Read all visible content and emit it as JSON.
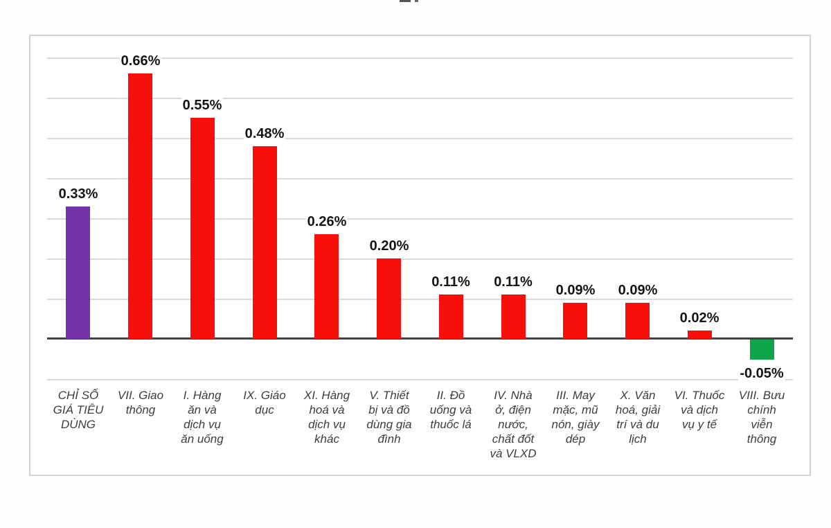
{
  "chart_data": {
    "type": "bar",
    "title": "",
    "xlabel": "",
    "ylabel": "",
    "unit": "%",
    "categories": [
      "CHỈ SỐ\nGIÁ TIÊU\nDÙNG",
      "VII. Giao\nthông",
      "I. Hàng\năn và\ndịch vụ\năn uống",
      "IX. Giáo\ndục",
      "XI. Hàng\nhoá và\ndịch vụ\nkhác",
      "V. Thiết\nbị và đồ\ndùng gia\nđình",
      "II. Đồ\nuống và\nthuốc lá",
      "IV. Nhà\nở, điện\nnước,\nchất đốt\nvà VLXD",
      "III. May\nmặc, mũ\nnón, giày\ndép",
      "X. Văn\nhoá, giải\ntrí và du\nlịch",
      "VI. Thuốc\nvà dịch\nvụ y tế",
      "VIII. Bưu\nchính\nviễn\nthông"
    ],
    "values": [
      0.33,
      0.66,
      0.55,
      0.48,
      0.26,
      0.2,
      0.11,
      0.11,
      0.09,
      0.09,
      0.02,
      -0.05
    ],
    "data_labels": [
      "0.33%",
      "0.66%",
      "0.55%",
      "0.48%",
      "0.26%",
      "0.20%",
      "0.11%",
      "0.11%",
      "0.09%",
      "0.09%",
      "0.02%",
      "-0.05%"
    ],
    "bar_colors": [
      "#7433a6",
      "#f70f0c",
      "#f70f0c",
      "#f70f0c",
      "#f70f0c",
      "#f70f0c",
      "#f70f0c",
      "#f70f0c",
      "#f70f0c",
      "#f70f0c",
      "#f70f0c",
      "#0ea54a"
    ],
    "ylim": [
      -0.35,
      0.76
    ],
    "gridline_values": [
      0.7,
      0.6,
      0.5,
      0.4,
      0.3,
      0.2,
      0.1,
      -0.1
    ],
    "grid": true,
    "legend_position": "none"
  },
  "colors": {
    "page_background": "#fdfdfd",
    "frame_background": "#ffffff",
    "frame_border": "#d2d2d2",
    "gridline": "#dadada",
    "zero_axis": "#424242",
    "value_label_text": "#141414",
    "category_label_text": "#3c3c3c",
    "cpi_bar": "#7433a6",
    "increase_bar": "#f70f0c",
    "decrease_bar": "#0ea54a"
  }
}
